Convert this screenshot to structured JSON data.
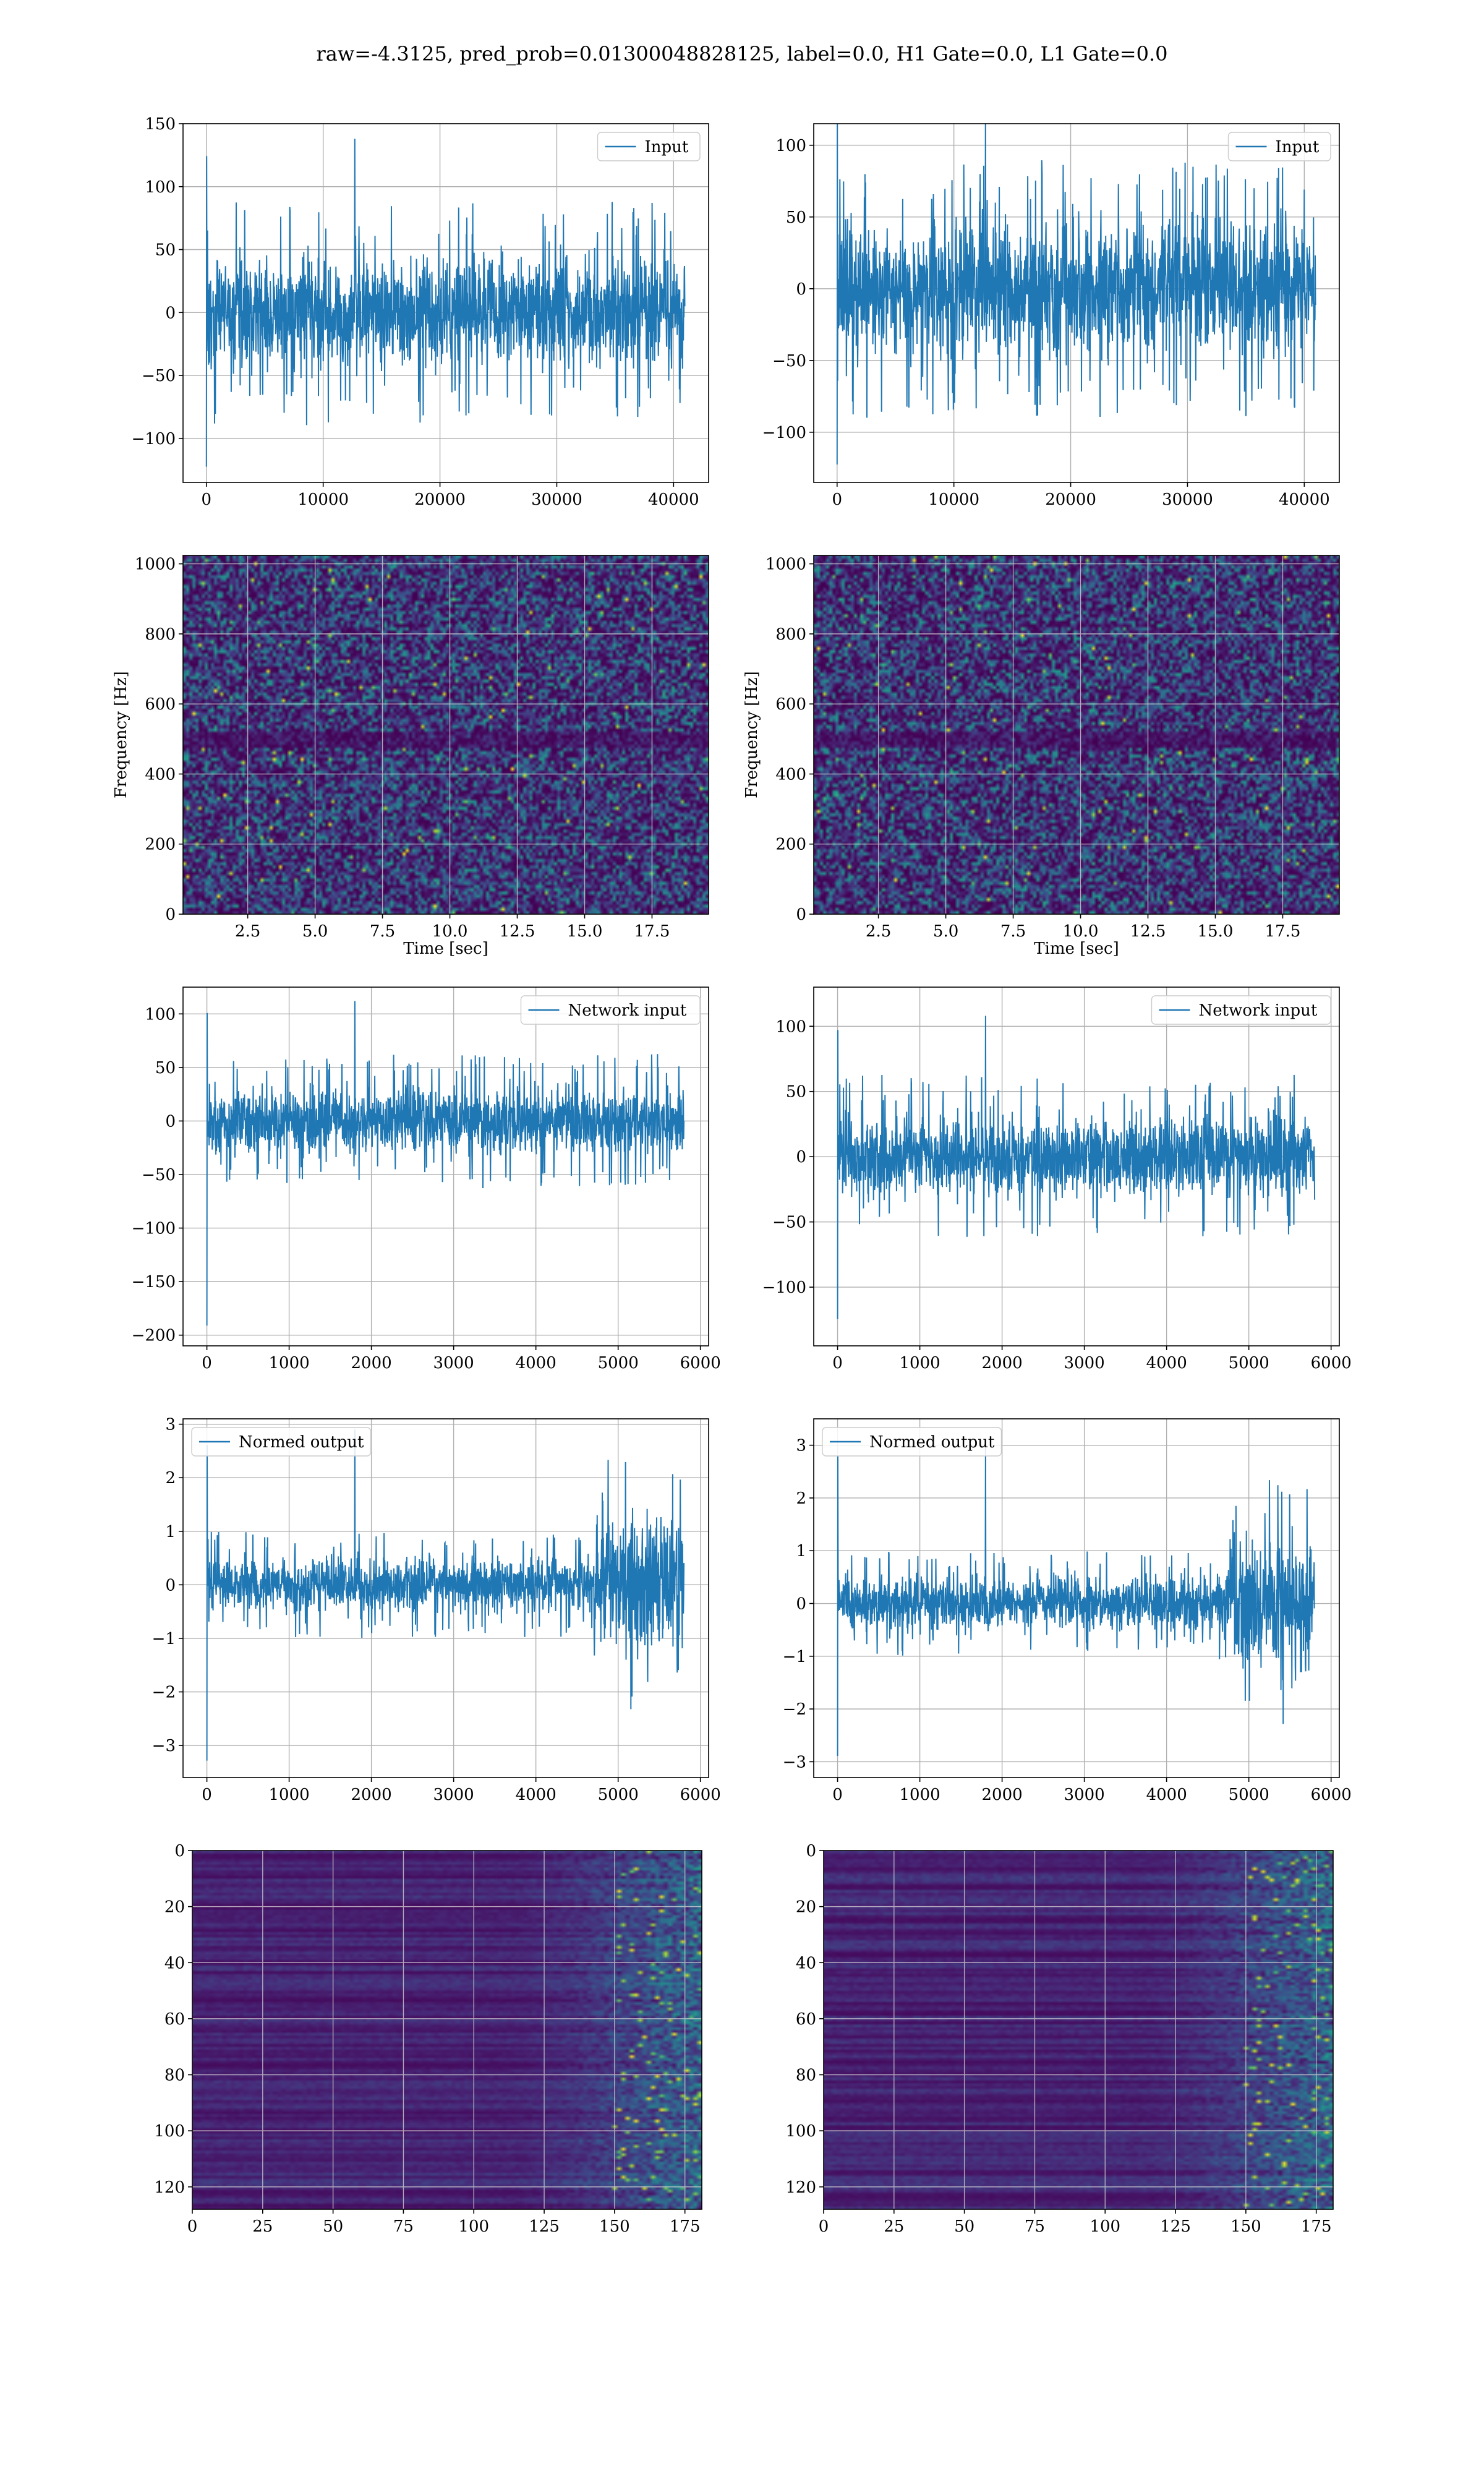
{
  "figure": {
    "suptitle": "raw=-4.3125, pred_prob=0.01300048828125, label=0.0, H1 Gate=0.0, L1 Gate=0.0"
  },
  "colors": {
    "line": "#1f77b4",
    "grid": "#b0b0b0",
    "axes": "#000000",
    "viridis": [
      "#440154",
      "#482878",
      "#3e4a89",
      "#31688e",
      "#26828e",
      "#1f9e89",
      "#35b779",
      "#6ece58",
      "#b5de2b",
      "#fde725"
    ]
  },
  "chart_data": [
    {
      "type": "line",
      "row": 0,
      "col": 0,
      "legend": "Input",
      "legend_loc": "upper right",
      "xlim": [
        -2000,
        43000
      ],
      "ylim": [
        -135,
        150
      ],
      "xticks": [
        0,
        10000,
        20000,
        30000,
        40000
      ],
      "yticks": [
        -100,
        -50,
        0,
        50,
        100,
        150
      ],
      "signal": {
        "n": 40960,
        "envelope": [
          [
            0,
            50
          ],
          [
            40960,
            50
          ]
        ],
        "amplitude_max": 138,
        "min": -125
      }
    },
    {
      "type": "line",
      "row": 0,
      "col": 1,
      "legend": "Input",
      "legend_loc": "upper right",
      "xlim": [
        -2000,
        43000
      ],
      "ylim": [
        -135,
        115
      ],
      "xticks": [
        0,
        10000,
        20000,
        30000,
        40000
      ],
      "yticks": [
        -100,
        -50,
        0,
        50,
        100
      ],
      "signal": {
        "n": 40960,
        "envelope": [
          [
            0,
            50
          ],
          [
            40960,
            50
          ]
        ],
        "amplitude_max": 128,
        "min": -125
      }
    },
    {
      "type": "heatmap",
      "row": 1,
      "col": 0,
      "ylabel": "Frequency [Hz]",
      "xlabel": "Time [sec]",
      "xlim": [
        0.1,
        19.6
      ],
      "ylim": [
        0,
        1024
      ],
      "xticks": [
        2.5,
        5.0,
        7.5,
        10.0,
        12.5,
        15.0,
        17.5
      ],
      "xtick_labels": [
        "2.5",
        "5.0",
        "7.5",
        "10.0",
        "12.5",
        "15.0",
        "17.5"
      ],
      "yticks": [
        0,
        200,
        400,
        600,
        800,
        1000
      ],
      "description_free": true
    },
    {
      "type": "heatmap",
      "row": 1,
      "col": 1,
      "ylabel": "Frequency [Hz]",
      "xlabel": "Time [sec]",
      "xlim": [
        0.1,
        19.6
      ],
      "ylim": [
        0,
        1024
      ],
      "xticks": [
        2.5,
        5.0,
        7.5,
        10.0,
        12.5,
        15.0,
        17.5
      ],
      "xtick_labels": [
        "2.5",
        "5.0",
        "7.5",
        "10.0",
        "12.5",
        "15.0",
        "17.5"
      ],
      "yticks": [
        0,
        200,
        400,
        600,
        800,
        1000
      ],
      "description_free": true
    },
    {
      "type": "line",
      "row": 2,
      "col": 0,
      "legend": "Network input",
      "legend_loc": "upper right",
      "xlim": [
        -290,
        6100
      ],
      "ylim": [
        -210,
        125
      ],
      "xticks": [
        0,
        1000,
        2000,
        3000,
        4000,
        5000,
        6000
      ],
      "yticks": [
        -200,
        -150,
        -100,
        -50,
        0,
        50,
        100
      ],
      "signal": {
        "n": 5800,
        "envelope": [
          [
            0,
            35
          ],
          [
            5800,
            35
          ]
        ],
        "amplitude_max": 112,
        "min": -195
      }
    },
    {
      "type": "line",
      "row": 2,
      "col": 1,
      "legend": "Network input",
      "legend_loc": "upper right",
      "xlim": [
        -290,
        6100
      ],
      "ylim": [
        -145,
        130
      ],
      "xticks": [
        0,
        1000,
        2000,
        3000,
        4000,
        5000,
        6000
      ],
      "yticks": [
        -100,
        -50,
        0,
        50,
        100
      ],
      "signal": {
        "n": 5800,
        "envelope": [
          [
            0,
            35
          ],
          [
            5800,
            35
          ]
        ],
        "amplitude_max": 108,
        "min": -127
      }
    },
    {
      "type": "line",
      "row": 3,
      "col": 0,
      "legend": "Normed output",
      "legend_loc": "upper left",
      "xlim": [
        -290,
        6100
      ],
      "ylim": [
        -3.6,
        3.1
      ],
      "xticks": [
        0,
        1000,
        2000,
        3000,
        4000,
        5000,
        6000
      ],
      "yticks": [
        -3,
        -2,
        -1,
        0,
        1,
        2,
        3
      ],
      "signal": {
        "n": 5800,
        "envelope": [
          [
            0,
            0.55
          ],
          [
            4600,
            0.55
          ],
          [
            4800,
            1.4
          ],
          [
            5800,
            1.3
          ]
        ],
        "amplitude_max": 2.9,
        "min": -3.35
      }
    },
    {
      "type": "line",
      "row": 3,
      "col": 1,
      "legend": "Normed output",
      "legend_loc": "upper left",
      "xlim": [
        -290,
        6100
      ],
      "ylim": [
        -3.3,
        3.5
      ],
      "xticks": [
        0,
        1000,
        2000,
        3000,
        4000,
        5000,
        6000
      ],
      "yticks": [
        -3,
        -2,
        -1,
        0,
        1,
        2,
        3
      ],
      "signal": {
        "n": 5800,
        "envelope": [
          [
            0,
            0.55
          ],
          [
            4600,
            0.55
          ],
          [
            4800,
            1.4
          ],
          [
            5800,
            1.3
          ]
        ],
        "amplitude_max": 3.1,
        "min": -2.95
      }
    },
    {
      "type": "heatmap",
      "row": 4,
      "col": 0,
      "xlim": [
        0,
        181
      ],
      "ylim": [
        128,
        0
      ],
      "xticks": [
        0,
        25,
        50,
        75,
        100,
        125,
        150,
        175
      ],
      "yticks": [
        0,
        20,
        40,
        60,
        80,
        100,
        120
      ]
    },
    {
      "type": "heatmap",
      "row": 4,
      "col": 1,
      "xlim": [
        0,
        181
      ],
      "ylim": [
        128,
        0
      ],
      "xticks": [
        0,
        25,
        50,
        75,
        100,
        125,
        150,
        175
      ],
      "yticks": [
        0,
        20,
        40,
        60,
        80,
        100,
        120
      ]
    }
  ]
}
